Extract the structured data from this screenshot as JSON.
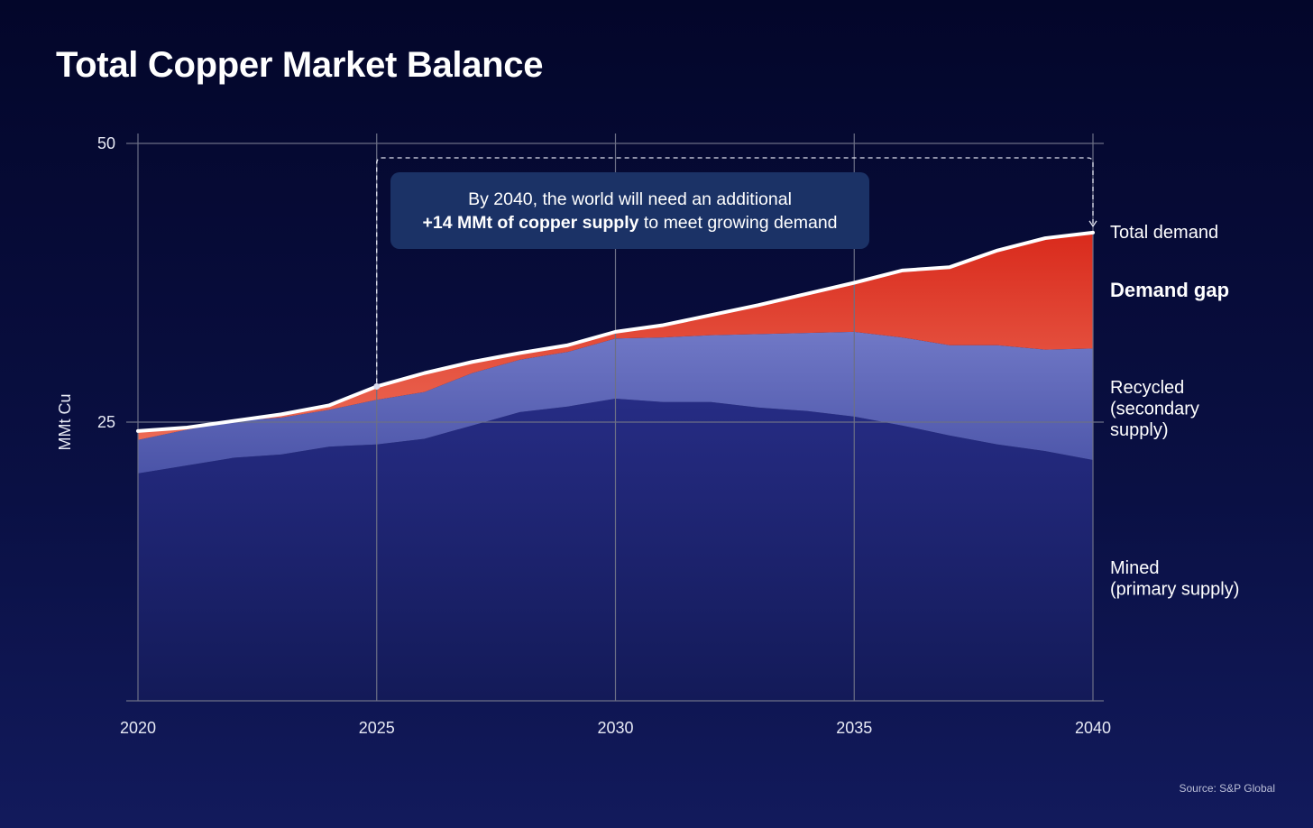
{
  "title": "Total Copper Market Balance",
  "source": "Source: S&P Global",
  "callout": {
    "line1": "By 2040, the world will need an additional",
    "bold": "+14 MMt of copper supply",
    "rest": " to meet growing demand"
  },
  "colors": {
    "mined": "#23297e",
    "recycled": "#6a72c2",
    "gap": "#e23a23",
    "demand_line": "#ffffff",
    "callout_bg": "#1b3266"
  },
  "chart_data": {
    "type": "area",
    "title": "Total Copper Market Balance",
    "xlabel": "",
    "ylabel": "MMt Cu",
    "x": [
      2020,
      2021,
      2022,
      2023,
      2024,
      2025,
      2026,
      2027,
      2028,
      2029,
      2030,
      2031,
      2032,
      2033,
      2034,
      2035,
      2036,
      2037,
      2038,
      2039,
      2040
    ],
    "xlim": [
      2020,
      2040
    ],
    "ylim": [
      0,
      50
    ],
    "xticks": [
      2020,
      2025,
      2030,
      2035,
      2040
    ],
    "yticks": [
      25,
      50
    ],
    "grid": true,
    "stacked": true,
    "series": [
      {
        "name": "Mined\n(primary supply)",
        "values": [
          20.4,
          21.1,
          21.8,
          22.1,
          22.8,
          23.0,
          23.5,
          24.7,
          25.9,
          26.4,
          27.1,
          26.8,
          26.8,
          26.3,
          26.0,
          25.5,
          24.7,
          23.8,
          23.0,
          22.4,
          21.6
        ]
      },
      {
        "name": "Recycled\n(secondary\nsupply)",
        "values": [
          3.0,
          3.2,
          3.3,
          3.3,
          3.3,
          4.0,
          4.2,
          4.7,
          4.7,
          4.9,
          5.4,
          5.8,
          6.0,
          6.6,
          7.0,
          7.6,
          7.9,
          8.1,
          8.9,
          9.1,
          10.0
        ]
      },
      {
        "name": "Demand gap",
        "values": [
          0.8,
          0.2,
          0.0,
          0.3,
          0.4,
          1.2,
          1.7,
          1.0,
          0.6,
          0.6,
          0.6,
          1.1,
          1.8,
          2.6,
          3.5,
          4.4,
          6.0,
          7.0,
          8.5,
          10.0,
          10.4
        ]
      }
    ],
    "total_demand": {
      "name": "Total demand",
      "values": [
        24.2,
        24.5,
        25.1,
        25.7,
        26.5,
        28.2,
        29.4,
        30.4,
        31.2,
        31.9,
        33.1,
        33.7,
        34.6,
        35.5,
        36.5,
        37.5,
        38.6,
        38.9,
        40.4,
        41.5,
        42.0
      ]
    },
    "annotation": {
      "from_x": 2025,
      "to_x": 2040,
      "text": "By 2040, the world will need an additional +14 MMt of copper supply to meet growing demand"
    }
  }
}
